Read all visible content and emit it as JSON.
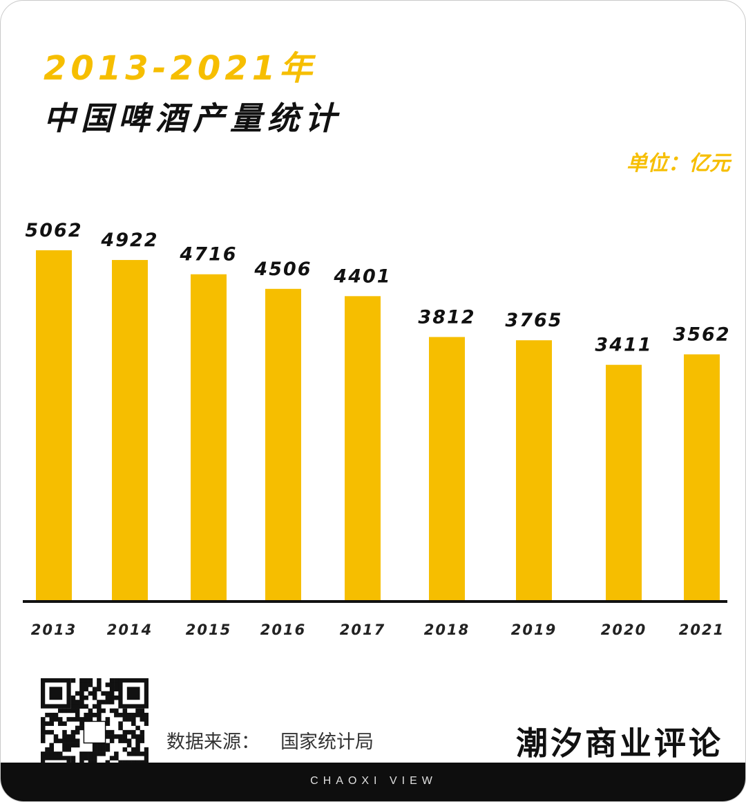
{
  "header": {
    "title_years": "2013-2021年",
    "title_main": "中国啤酒产量统计",
    "unit": "单位：亿元"
  },
  "chart_data": {
    "type": "bar",
    "categories": [
      "2013",
      "2014",
      "2015",
      "2016",
      "2017",
      "2018",
      "2019",
      "2020",
      "2021"
    ],
    "values": [
      5062,
      4922,
      4716,
      4506,
      4401,
      3812,
      3765,
      3411,
      3562
    ],
    "ylabel": "单位：亿元",
    "grid": false,
    "data_labels": true,
    "bar_color": "#f6be00"
  },
  "footer": {
    "source_label": "数据来源：",
    "source_value": "国家统计局",
    "brand": "潮汐商业评论",
    "tagline": "CHAOXI VIEW",
    "qr_icon": "qr-code-icon"
  },
  "colors": {
    "accent": "#f6be00",
    "text": "#111111",
    "footer_bg": "#0e0e0e"
  }
}
